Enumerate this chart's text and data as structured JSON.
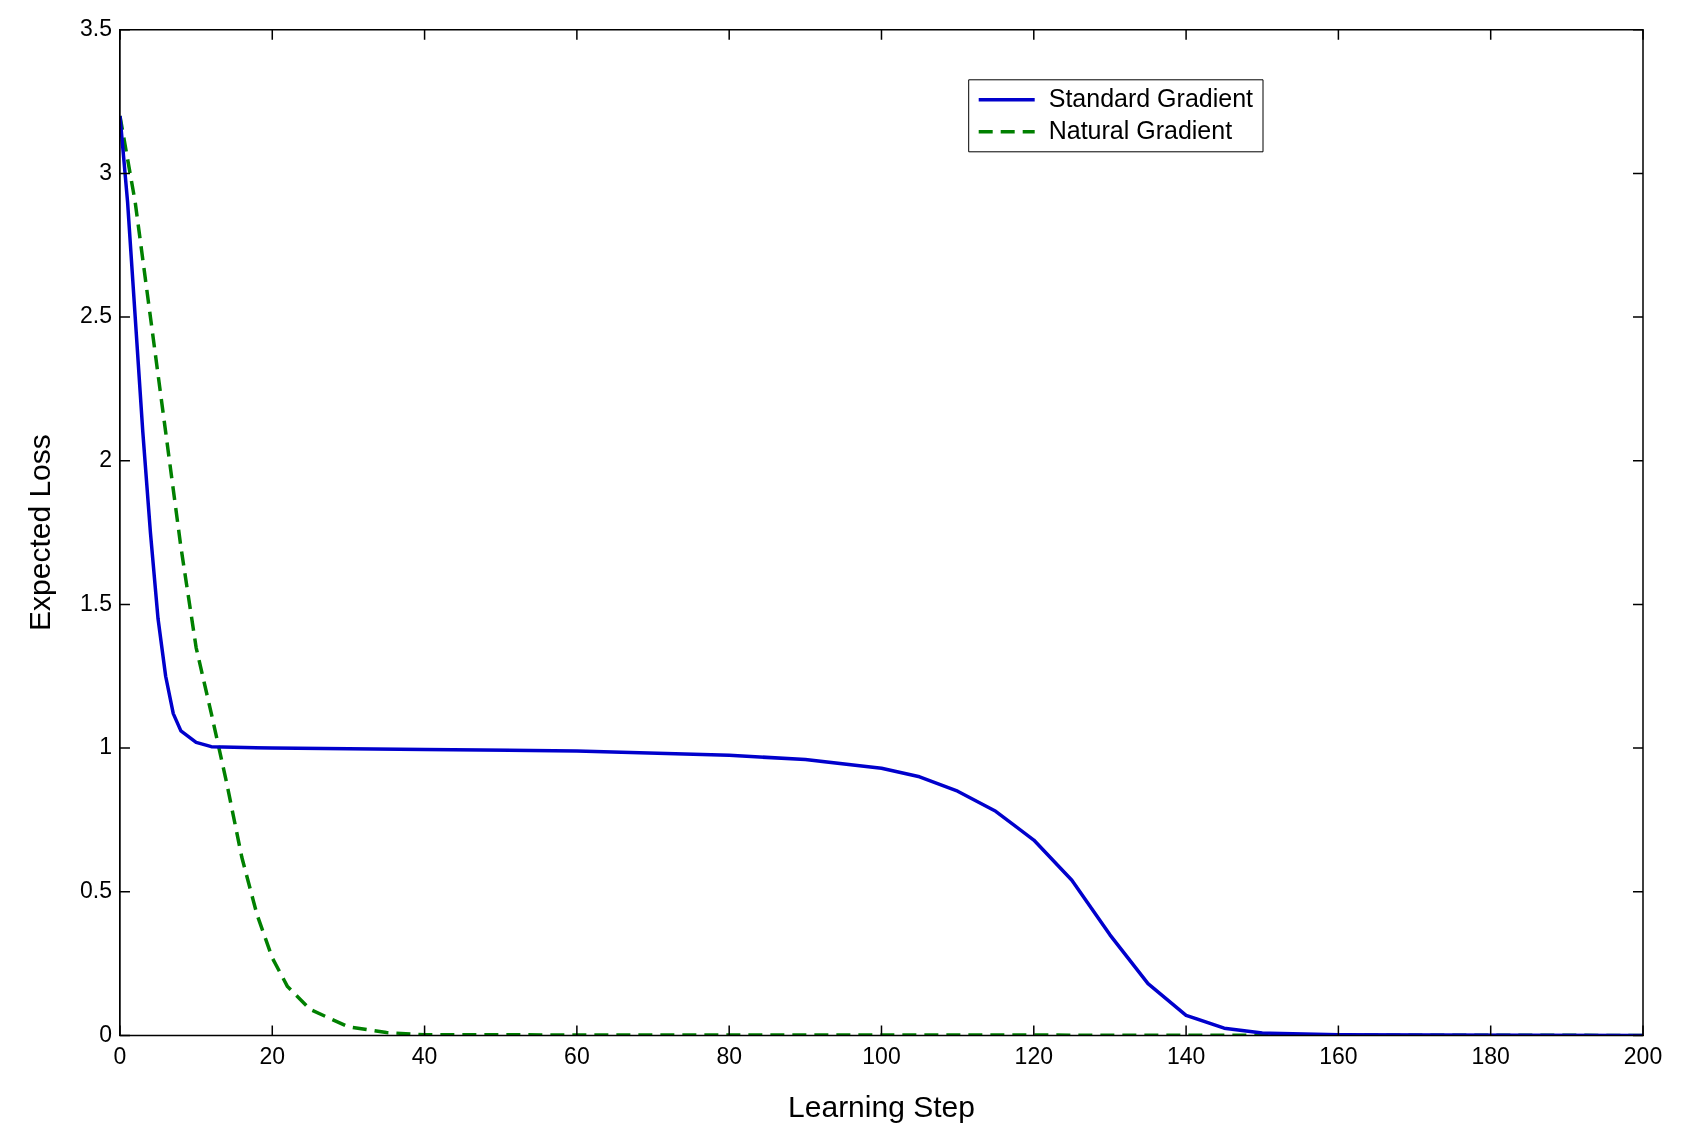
{
  "chart_data": {
    "type": "line",
    "xlabel": "Learning Step",
    "ylabel": "Expected Loss",
    "xlim": [
      0,
      200
    ],
    "ylim": [
      0,
      3.5
    ],
    "xticks": [
      0,
      20,
      40,
      60,
      80,
      100,
      120,
      140,
      160,
      180,
      200
    ],
    "yticks": [
      0,
      0.5,
      1,
      1.5,
      2,
      2.5,
      3,
      3.5
    ],
    "grid": false,
    "legend": "top right",
    "marker": "none",
    "series": [
      {
        "name": "Standard Gradient",
        "color": "#0000cc",
        "line_style": "solid",
        "x": [
          0,
          1,
          2,
          3,
          4,
          5,
          6,
          7,
          8,
          10,
          12,
          20,
          40,
          60,
          80,
          90,
          100,
          105,
          110,
          115,
          120,
          125,
          130,
          135,
          140,
          145,
          150,
          160,
          200
        ],
        "values": [
          3.2,
          2.9,
          2.5,
          2.1,
          1.75,
          1.45,
          1.25,
          1.12,
          1.06,
          1.02,
          1.005,
          1.0,
          0.995,
          0.99,
          0.975,
          0.96,
          0.93,
          0.9,
          0.85,
          0.78,
          0.68,
          0.54,
          0.35,
          0.18,
          0.07,
          0.025,
          0.008,
          0.002,
          0
        ]
      },
      {
        "name": "Natural Gradient",
        "color": "#008000",
        "line_style": "dashed",
        "x": [
          0,
          2,
          4,
          6,
          8,
          10,
          12,
          13,
          14,
          16,
          18,
          20,
          22,
          25,
          30,
          35,
          40,
          200
        ],
        "values": [
          3.2,
          2.9,
          2.5,
          2.1,
          1.7,
          1.35,
          1.12,
          1.0,
          0.88,
          0.62,
          0.42,
          0.27,
          0.17,
          0.09,
          0.03,
          0.01,
          0.002,
          0
        ]
      }
    ]
  }
}
